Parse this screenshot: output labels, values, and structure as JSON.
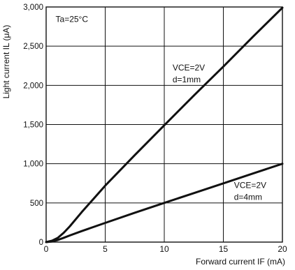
{
  "chart_data": {
    "type": "line",
    "xlabel": "Forward current IF (mA)",
    "ylabel": "Light current IL (μA)",
    "xlim": [
      0,
      20
    ],
    "ylim": [
      0,
      3000
    ],
    "grid": true,
    "x_ticks": [
      0,
      5,
      10,
      15,
      20
    ],
    "x_tick_labels": [
      "0",
      "5",
      "10",
      "15",
      "20"
    ],
    "y_ticks": [
      0,
      500,
      1000,
      1500,
      2000,
      2500,
      3000
    ],
    "y_tick_labels": [
      "0",
      "500",
      "1,000",
      "1,500",
      "2,000",
      "2,500",
      "3,000"
    ],
    "annotations": [
      {
        "text": "Ta=25°C"
      },
      {
        "text": "VCE=2V"
      },
      {
        "text": "d=1mm"
      },
      {
        "text": "VCE=2V"
      },
      {
        "text": "d=4mm"
      }
    ],
    "series": [
      {
        "x": [
          0,
          0.5,
          1,
          1.5,
          2,
          3,
          4,
          5,
          7.5,
          10,
          12.5,
          15,
          17.5,
          20
        ],
        "y": [
          0,
          18,
          55,
          120,
          200,
          380,
          550,
          720,
          1110,
          1490,
          1870,
          2240,
          2620,
          2990
        ]
      },
      {
        "x": [
          0,
          0.5,
          1,
          1.5,
          2,
          3,
          5,
          7.5,
          10,
          12.5,
          15,
          17.5,
          20
        ],
        "y": [
          0,
          8,
          28,
          55,
          85,
          140,
          245,
          375,
          500,
          625,
          750,
          875,
          1000
        ]
      }
    ]
  }
}
